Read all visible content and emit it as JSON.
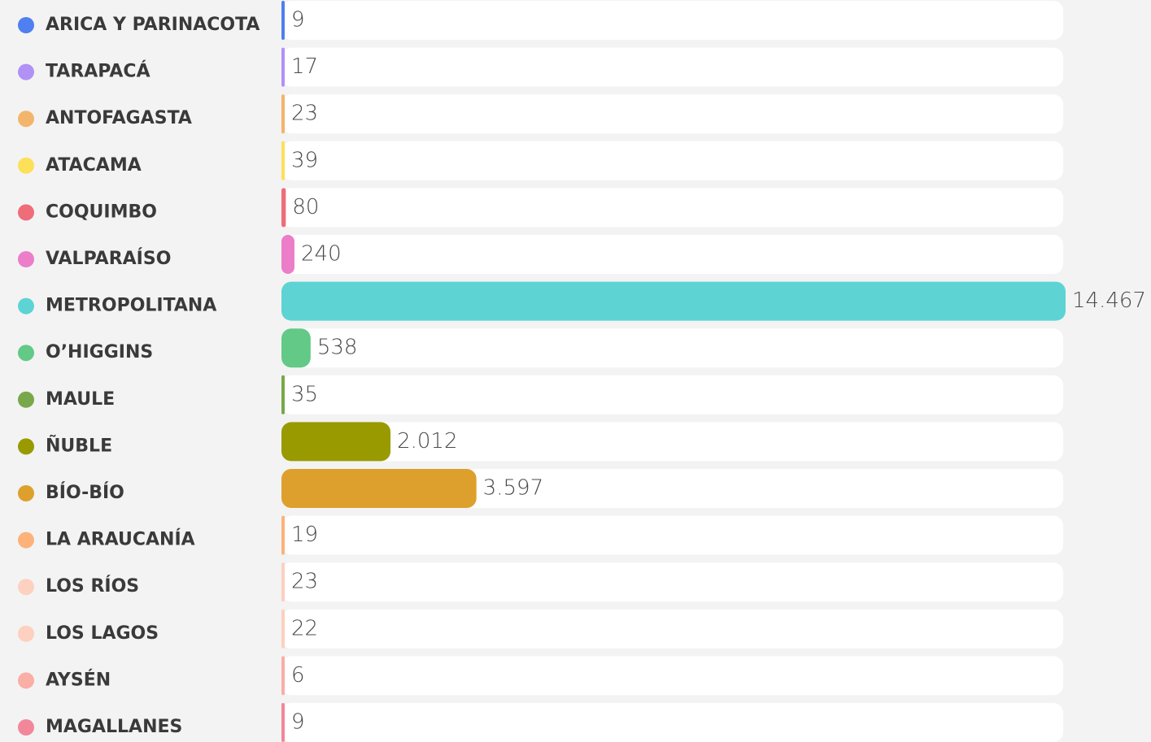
{
  "chart_data": {
    "type": "bar",
    "orientation": "horizontal",
    "categories": [
      "ARICA Y PARINACOTA",
      "TARAPACÁ",
      "ANTOFAGASTA",
      "ATACAMA",
      "COQUIMBO",
      "VALPARAÍSO",
      "METROPOLITANA",
      "O’HIGGINS",
      "MAULE",
      "ÑUBLE",
      "BÍO-BÍO",
      "LA ARAUCANÍA",
      "LOS RÍOS",
      "LOS LAGOS",
      "AYSÉN",
      "MAGALLANES"
    ],
    "values": [
      9,
      17,
      23,
      39,
      80,
      240,
      14467,
      538,
      35,
      2012,
      3597,
      19,
      23,
      22,
      6,
      9
    ],
    "value_labels": [
      "9",
      "17",
      "23",
      "39",
      "80",
      "240",
      "14.467",
      "538",
      "35",
      "2.012",
      "3.597",
      "19",
      "23",
      "22",
      "6",
      "9"
    ],
    "colors": [
      "#4f7ff0",
      "#b191f5",
      "#f2b56b",
      "#fde05a",
      "#ef6c79",
      "#ec7dc9",
      "#5ed3d3",
      "#62c987",
      "#78a84a",
      "#989a00",
      "#dda02d",
      "#fdb27a",
      "#fdd0c0",
      "#fdd0c0",
      "#f9aea6",
      "#f2879a"
    ],
    "xlim": [
      0,
      14467
    ]
  }
}
